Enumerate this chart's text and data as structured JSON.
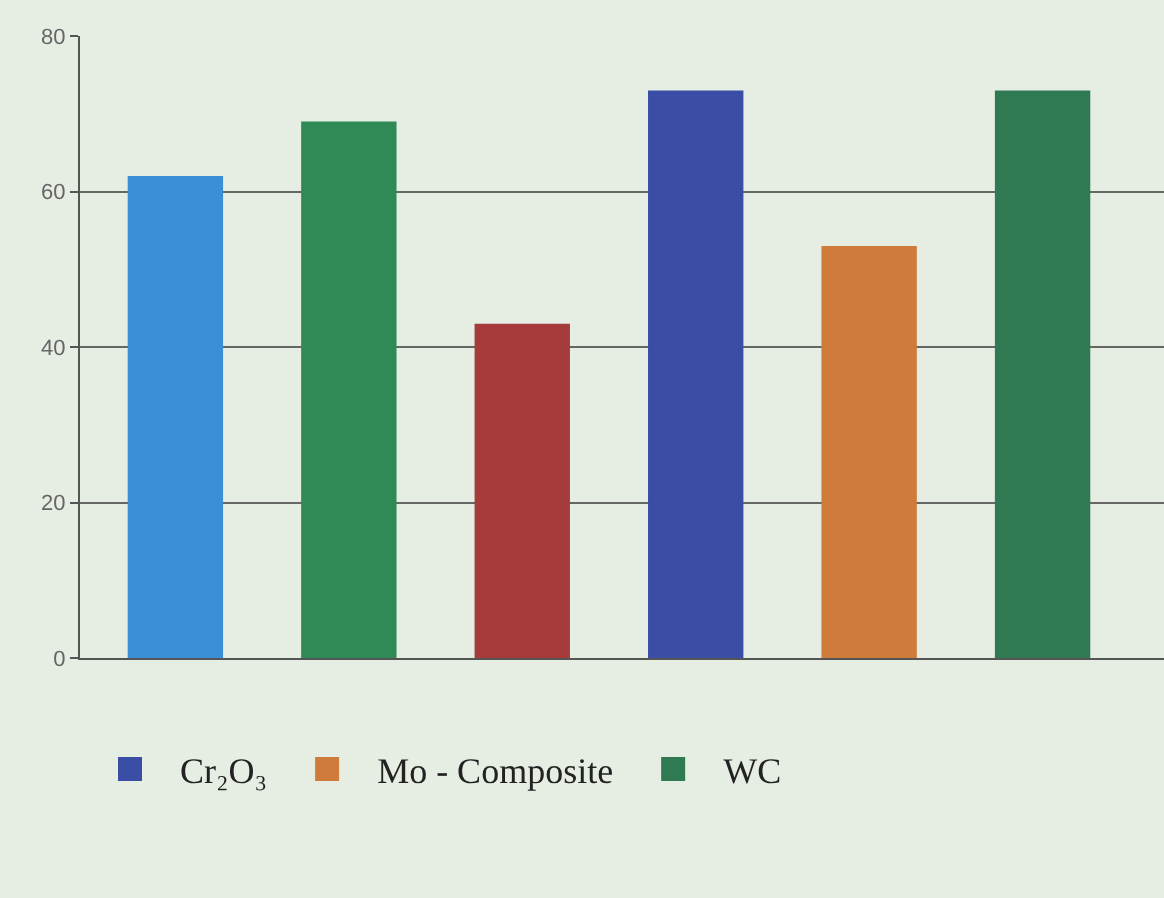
{
  "chart_data": {
    "type": "bar",
    "categories": [
      null,
      null,
      null,
      null,
      null,
      null
    ],
    "series": [
      {
        "colors": [
          "#3b8fd6",
          "#2f8a56",
          "#a53b3b",
          null,
          null,
          null
        ],
        "values": [
          62,
          69,
          43,
          null,
          null,
          null
        ]
      },
      {
        "name": "Cr₂O₃",
        "color": "#3a4ea6",
        "values": [
          null,
          null,
          null,
          73,
          null,
          null
        ]
      },
      {
        "name": "Mo - Composite",
        "color": "#cf7b3c",
        "values": [
          null,
          null,
          null,
          null,
          53,
          null
        ]
      },
      {
        "name": "WC",
        "color": "#2f7a52",
        "values": [
          null,
          null,
          null,
          null,
          null,
          73
        ]
      }
    ],
    "ylim": [
      0,
      80
    ],
    "yticks": [
      0,
      20,
      40,
      60,
      80
    ],
    "grid": "y",
    "legend": "bottom"
  }
}
